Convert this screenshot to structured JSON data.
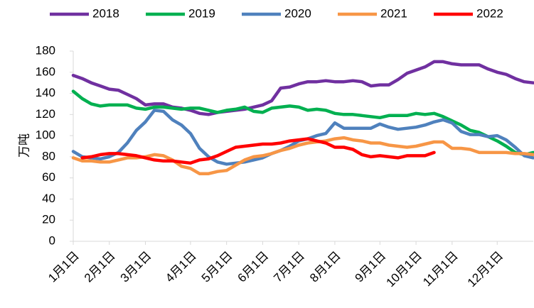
{
  "chart_data": {
    "type": "line",
    "y_label": "万吨",
    "categories": [
      "1月1日",
      null,
      null,
      null,
      "2月1日",
      null,
      null,
      null,
      "3月1日",
      null,
      null,
      null,
      null,
      "4月1日",
      null,
      null,
      null,
      "5月1日",
      null,
      null,
      null,
      "6月1日",
      null,
      null,
      null,
      "7月1日",
      null,
      null,
      null,
      "8月1日",
      null,
      null,
      null,
      null,
      "9月1日",
      null,
      null,
      null,
      "10月1日",
      null,
      null,
      null,
      "11月1日",
      null,
      null,
      null,
      null,
      "12月1日",
      null,
      null,
      null,
      null
    ],
    "series": [
      {
        "name": "2018",
        "color": "#7030a0",
        "values": [
          157,
          154,
          150,
          147,
          144,
          143,
          139,
          135,
          129,
          130,
          130,
          127,
          126,
          124,
          121,
          120,
          122,
          123,
          124,
          125,
          127,
          129,
          133,
          145,
          146,
          149,
          151,
          151,
          152,
          151,
          151,
          152,
          151,
          147,
          148,
          148,
          153,
          159,
          162,
          165,
          170,
          170,
          168,
          167,
          167,
          167,
          163,
          160,
          158,
          154,
          151,
          150
        ]
      },
      {
        "name": "2019",
        "color": "#00b050",
        "values": [
          142,
          135,
          130,
          128,
          129,
          129,
          129,
          126,
          125,
          127,
          127,
          126,
          125,
          126,
          126,
          124,
          122,
          124,
          125,
          127,
          123,
          122,
          126,
          127,
          128,
          127,
          124,
          125,
          124,
          121,
          120,
          120,
          119,
          118,
          117,
          119,
          119,
          119,
          121,
          120,
          121,
          118,
          114,
          110,
          105,
          103,
          99,
          95,
          90,
          84,
          82,
          84
        ]
      },
      {
        "name": "2020",
        "color": "#4f81bd",
        "values": [
          85,
          80,
          79,
          78,
          80,
          84,
          93,
          105,
          113,
          124,
          123,
          115,
          110,
          102,
          88,
          80,
          75,
          73,
          74,
          75,
          77,
          79,
          83,
          86,
          90,
          95,
          97,
          100,
          102,
          112,
          107,
          107,
          107,
          107,
          111,
          108,
          106,
          107,
          108,
          110,
          113,
          115,
          112,
          104,
          101,
          101,
          99,
          100,
          96,
          89,
          81,
          79
        ]
      },
      {
        "name": "2021",
        "color": "#f79646",
        "values": [
          79,
          76,
          76,
          75,
          75,
          77,
          79,
          79,
          80,
          82,
          81,
          77,
          71,
          69,
          64,
          64,
          66,
          67,
          72,
          77,
          80,
          81,
          83,
          86,
          88,
          91,
          93,
          94,
          95,
          97,
          98,
          96,
          95,
          93,
          93,
          91,
          90,
          89,
          90,
          92,
          94,
          94,
          88,
          88,
          87,
          84,
          84,
          84,
          84,
          83,
          83,
          82
        ]
      },
      {
        "name": "2022",
        "color": "#ff0000",
        "values": [
          null,
          79,
          80,
          82,
          83,
          83,
          82,
          81,
          79,
          77,
          76,
          76,
          75,
          74,
          77,
          78,
          81,
          85,
          89,
          90,
          91,
          92,
          92,
          93,
          95,
          96,
          97,
          95,
          93,
          89,
          89,
          87,
          82,
          80,
          81,
          80,
          79,
          81,
          81,
          81,
          84,
          null,
          null,
          null,
          null,
          null,
          null,
          null,
          null,
          null,
          null,
          null
        ]
      }
    ],
    "ylim": [
      0,
      180
    ],
    "yticks": [
      0,
      20,
      40,
      60,
      80,
      100,
      120,
      140,
      160,
      180
    ],
    "grid": false,
    "legend": "top"
  }
}
